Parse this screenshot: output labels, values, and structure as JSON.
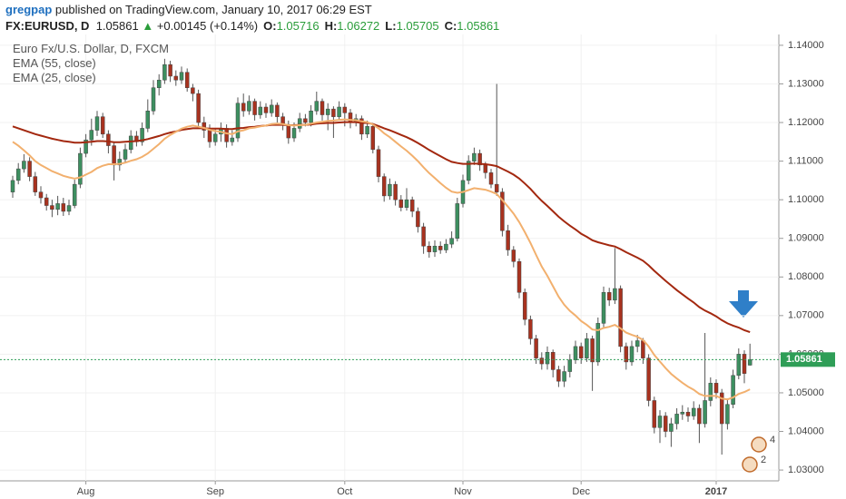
{
  "header": {
    "user": "gregpap",
    "published": "published on TradingView.com, January 10, 2017 06:29 EST",
    "symbol": "FX:EURUSD, D",
    "change": "+0.00145 (+0.14%)",
    "o_label": "O:",
    "h_label": "H:",
    "l_label": "L:",
    "c_label": "C:"
  },
  "event_counts": [
    4,
    2
  ],
  "chart_data": {
    "type": "candlestick",
    "title": "Euro Fx/U.S. Dollar, D, FXCM",
    "up_color": "#3d8f60",
    "down_color": "#a8321f",
    "last_price_color": "#2f9e57",
    "grid": true,
    "ylim": [
      1.0272,
      1.1428
    ],
    "yticks": [
      {
        "value": 1.03,
        "label": "1.03000"
      },
      {
        "value": 1.04,
        "label": "1.04000"
      },
      {
        "value": 1.05,
        "label": "1.05000"
      },
      {
        "value": 1.06,
        "label": "1.06000"
      },
      {
        "value": 1.07,
        "label": "1.07000"
      },
      {
        "value": 1.08,
        "label": "1.08000"
      },
      {
        "value": 1.09,
        "label": "1.09000"
      },
      {
        "value": 1.1,
        "label": "1.10000"
      },
      {
        "value": 1.11,
        "label": "1.11000"
      },
      {
        "value": 1.12,
        "label": "1.12000"
      },
      {
        "value": 1.13,
        "label": "1.13000"
      },
      {
        "value": 1.14,
        "label": "1.14000"
      }
    ],
    "categories": [
      null,
      null,
      null,
      null,
      null,
      null,
      null,
      null,
      null,
      null,
      null,
      null,
      null,
      "Aug",
      null,
      null,
      null,
      null,
      null,
      null,
      null,
      null,
      null,
      null,
      null,
      null,
      null,
      null,
      null,
      null,
      null,
      null,
      null,
      null,
      null,
      null,
      "Sep",
      null,
      null,
      null,
      null,
      null,
      null,
      null,
      null,
      null,
      null,
      null,
      null,
      null,
      null,
      null,
      null,
      null,
      null,
      null,
      null,
      null,
      null,
      "Oct",
      null,
      null,
      null,
      null,
      null,
      null,
      null,
      null,
      null,
      null,
      null,
      null,
      null,
      null,
      null,
      null,
      null,
      null,
      null,
      null,
      "Nov",
      null,
      null,
      null,
      null,
      null,
      null,
      null,
      null,
      null,
      null,
      null,
      null,
      null,
      null,
      null,
      null,
      null,
      null,
      null,
      null,
      "Dec",
      null,
      null,
      null,
      null,
      null,
      null,
      null,
      null,
      null,
      null,
      null,
      null,
      null,
      null,
      null,
      null,
      null,
      null,
      null,
      null,
      null,
      null,
      null,
      "2017",
      null,
      null,
      null,
      null,
      null,
      null
    ],
    "open": [
      1.102,
      1.105,
      1.108,
      1.11,
      1.106,
      1.102,
      1.1005,
      1.0985,
      1.0975,
      1.099,
      1.097,
      1.0985,
      1.104,
      1.112,
      1.1155,
      1.118,
      1.1215,
      1.117,
      1.114,
      1.109,
      1.1105,
      1.113,
      1.1165,
      1.115,
      1.1185,
      1.123,
      1.129,
      1.131,
      1.135,
      1.132,
      1.131,
      1.133,
      1.129,
      1.1275,
      1.12,
      1.118,
      1.115,
      1.117,
      1.1185,
      1.115,
      1.116,
      1.125,
      1.123,
      1.1255,
      1.122,
      1.124,
      1.1225,
      1.1245,
      1.1215,
      1.1195,
      1.116,
      1.1185,
      1.121,
      1.12,
      1.123,
      1.1255,
      1.122,
      1.1235,
      1.1215,
      1.124,
      1.1225,
      1.12,
      1.121,
      1.117,
      1.119,
      1.113,
      1.106,
      1.101,
      1.104,
      1.1,
      1.098,
      1.1,
      1.097,
      1.093,
      1.088,
      1.0865,
      1.088,
      1.087,
      1.0885,
      1.09,
      1.099,
      1.105,
      1.11,
      1.112,
      1.109,
      1.107,
      1.104,
      1.102,
      1.092,
      1.087,
      1.084,
      1.076,
      1.069,
      1.064,
      1.059,
      1.0575,
      1.0605,
      1.056,
      1.053,
      1.0555,
      1.0585,
      1.062,
      1.059,
      1.064,
      1.058,
      1.068,
      1.076,
      1.074,
      1.077,
      1.062,
      1.058,
      1.062,
      1.0635,
      1.059,
      1.048,
      1.041,
      1.044,
      1.04,
      1.042,
      1.0445,
      1.045,
      1.044,
      1.046,
      1.042,
      1.048,
      1.0525,
      1.05,
      1.042,
      1.047,
      1.0545,
      1.06,
      1.05716
    ],
    "high": [
      1.1062,
      1.1095,
      1.1118,
      1.111,
      1.1072,
      1.1035,
      1.1015,
      1.1,
      1.101,
      1.1005,
      1.1,
      1.1052,
      1.1135,
      1.117,
      1.121,
      1.123,
      1.1225,
      1.118,
      1.115,
      1.1125,
      1.1145,
      1.118,
      1.1178,
      1.12,
      1.126,
      1.131,
      1.1325,
      1.1365,
      1.136,
      1.1335,
      1.1345,
      1.134,
      1.13,
      1.1285,
      1.1215,
      1.1195,
      1.1185,
      1.12,
      1.1195,
      1.118,
      1.1265,
      1.1275,
      1.127,
      1.1262,
      1.1255,
      1.125,
      1.126,
      1.1252,
      1.1225,
      1.1205,
      1.12,
      1.1225,
      1.1222,
      1.1245,
      1.128,
      1.1262,
      1.125,
      1.1242,
      1.1255,
      1.125,
      1.1235,
      1.1222,
      1.1218,
      1.1205,
      1.1198,
      1.114,
      1.1068,
      1.1055,
      1.1048,
      1.1012,
      1.103,
      1.1008,
      1.098,
      1.094,
      1.0892,
      1.0895,
      1.0892,
      1.0898,
      1.0918,
      1.1005,
      1.1065,
      1.1115,
      1.1135,
      1.113,
      1.1098,
      1.108,
      1.13,
      1.103,
      1.0935,
      1.088,
      1.0848,
      1.077,
      1.07,
      1.065,
      1.0605,
      1.062,
      1.0612,
      1.057,
      1.057,
      1.06,
      1.0635,
      1.063,
      1.0655,
      1.0648,
      1.0695,
      1.0775,
      1.0772,
      1.0875,
      1.0778,
      1.063,
      1.0635,
      1.065,
      1.0642,
      1.06,
      1.049,
      1.0455,
      1.045,
      1.0435,
      1.046,
      1.0468,
      1.0462,
      1.0478,
      1.047,
      1.0655,
      1.054,
      1.0535,
      1.051,
      1.0485,
      1.056,
      1.0615,
      1.061,
      1.06272
    ],
    "low": [
      1.1005,
      1.104,
      1.107,
      1.1048,
      1.101,
      1.099,
      1.0972,
      1.0955,
      1.096,
      1.0958,
      1.096,
      1.0978,
      1.103,
      1.111,
      1.114,
      1.1165,
      1.116,
      1.112,
      1.105,
      1.1075,
      1.1095,
      1.112,
      1.1138,
      1.114,
      1.1175,
      1.122,
      1.127,
      1.13,
      1.1305,
      1.1295,
      1.13,
      1.128,
      1.1255,
      1.1185,
      1.116,
      1.1135,
      1.114,
      1.115,
      1.1135,
      1.114,
      1.115,
      1.1215,
      1.122,
      1.1205,
      1.121,
      1.1212,
      1.1215,
      1.12,
      1.118,
      1.1145,
      1.115,
      1.1175,
      1.119,
      1.119,
      1.122,
      1.1205,
      1.118,
      1.116,
      1.1205,
      1.119,
      1.1185,
      1.119,
      1.1155,
      1.116,
      1.112,
      1.1045,
      1.0995,
      1.1,
      1.0985,
      1.097,
      1.0972,
      1.0955,
      1.0915,
      1.086,
      1.085,
      1.0852,
      1.086,
      1.0862,
      1.0875,
      1.0892,
      1.098,
      1.104,
      1.109,
      1.1075,
      1.1055,
      1.103,
      1.101,
      1.0905,
      1.0855,
      1.0825,
      1.0745,
      1.0675,
      1.0625,
      1.0575,
      1.056,
      1.056,
      1.054,
      1.0515,
      1.0515,
      1.054,
      1.0575,
      1.0575,
      1.058,
      1.0505,
      1.057,
      1.067,
      1.0725,
      1.073,
      1.0605,
      1.056,
      1.057,
      1.0605,
      1.0575,
      1.0465,
      1.0395,
      1.037,
      1.0385,
      1.036,
      1.0405,
      1.043,
      1.0425,
      1.043,
      1.037,
      1.041,
      1.0465,
      1.0485,
      1.034,
      1.0405,
      1.046,
      1.0535,
      1.0525,
      1.05705
    ],
    "close": [
      1.105,
      1.108,
      1.11,
      1.106,
      1.102,
      1.1005,
      1.0985,
      1.0975,
      1.099,
      1.097,
      1.0985,
      1.104,
      1.112,
      1.1155,
      1.118,
      1.1215,
      1.117,
      1.114,
      1.109,
      1.1105,
      1.113,
      1.1165,
      1.115,
      1.1185,
      1.123,
      1.129,
      1.131,
      1.135,
      1.132,
      1.131,
      1.133,
      1.129,
      1.1275,
      1.12,
      1.118,
      1.115,
      1.117,
      1.1185,
      1.115,
      1.116,
      1.125,
      1.123,
      1.1255,
      1.122,
      1.124,
      1.1225,
      1.1245,
      1.1215,
      1.1195,
      1.116,
      1.1185,
      1.121,
      1.12,
      1.123,
      1.1255,
      1.122,
      1.1235,
      1.1215,
      1.124,
      1.1225,
      1.12,
      1.121,
      1.117,
      1.119,
      1.113,
      1.106,
      1.101,
      1.104,
      1.1,
      1.098,
      1.1,
      1.097,
      1.093,
      1.088,
      1.0865,
      1.088,
      1.087,
      1.0885,
      1.09,
      1.099,
      1.105,
      1.11,
      1.112,
      1.109,
      1.107,
      1.104,
      1.102,
      1.092,
      1.087,
      1.084,
      1.076,
      1.069,
      1.064,
      1.059,
      1.0575,
      1.0605,
      1.056,
      1.053,
      1.0555,
      1.0585,
      1.062,
      1.059,
      1.064,
      1.058,
      1.068,
      1.076,
      1.074,
      1.077,
      1.062,
      1.058,
      1.062,
      1.0635,
      1.059,
      1.048,
      1.041,
      1.044,
      1.04,
      1.042,
      1.0445,
      1.045,
      1.044,
      1.046,
      1.042,
      1.048,
      1.0525,
      1.05,
      1.042,
      1.047,
      1.0545,
      1.06,
      1.055,
      1.05861
    ],
    "series": [
      {
        "name": "EMA (55, close)",
        "color": "#a3280f",
        "values": [
          1.119,
          1.1185,
          1.118,
          1.1175,
          1.117,
          1.1166,
          1.1162,
          1.1158,
          1.1155,
          1.1152,
          1.115,
          1.1148,
          1.1148,
          1.1149,
          1.115,
          1.1152,
          1.1152,
          1.1151,
          1.1149,
          1.1149,
          1.115,
          1.1151,
          1.1152,
          1.1154,
          1.1157,
          1.1161,
          1.1165,
          1.117,
          1.1174,
          1.1177,
          1.1181,
          1.1183,
          1.1185,
          1.1185,
          1.1185,
          1.1184,
          1.1184,
          1.1184,
          1.1183,
          1.1183,
          1.1185,
          1.1186,
          1.1188,
          1.1189,
          1.1191,
          1.1192,
          1.1194,
          1.1194,
          1.1194,
          1.1193,
          1.1193,
          1.1194,
          1.1194,
          1.1195,
          1.1197,
          1.1198,
          1.1199,
          1.1199,
          1.12,
          1.1201,
          1.1201,
          1.1201,
          1.1199,
          1.1199,
          1.1196,
          1.1191,
          1.1185,
          1.118,
          1.1174,
          1.1168,
          1.1162,
          1.1155,
          1.1147,
          1.1138,
          1.1129,
          1.1121,
          1.1113,
          1.1105,
          1.1098,
          1.1095,
          1.1093,
          1.1093,
          1.1094,
          1.1093,
          1.1092,
          1.109,
          1.1087,
          1.108,
          1.1073,
          1.1065,
          1.1055,
          1.1042,
          1.1028,
          1.1012,
          1.0997,
          1.0984,
          1.097,
          1.0956,
          1.0944,
          1.0933,
          1.0923,
          1.0912,
          1.0904,
          1.0895,
          1.089,
          1.0886,
          1.0882,
          1.0879,
          1.0872,
          1.0864,
          1.0857,
          1.085,
          1.0842,
          1.083,
          1.0816,
          1.0803,
          1.079,
          1.0778,
          1.0766,
          1.0755,
          1.0744,
          1.0734,
          1.0722,
          1.0713,
          1.0706,
          1.0698,
          1.0688,
          1.068,
          1.0674,
          1.0669,
          1.0662,
          1.0657
        ]
      },
      {
        "name": "EMA (25, close)",
        "color": "#f2b06e",
        "values": [
          1.115,
          1.114,
          1.1128,
          1.1115,
          1.11,
          1.109,
          1.1082,
          1.1074,
          1.1068,
          1.1062,
          1.1058,
          1.1055,
          1.1058,
          1.1065,
          1.1072,
          1.1082,
          1.1088,
          1.1092,
          1.1092,
          1.1093,
          1.1096,
          1.1101,
          1.1105,
          1.1111,
          1.112,
          1.1132,
          1.1144,
          1.1158,
          1.1168,
          1.1176,
          1.1184,
          1.1189,
          1.1192,
          1.1189,
          1.1186,
          1.1181,
          1.1178,
          1.1176,
          1.1172,
          1.117,
          1.1177,
          1.118,
          1.1185,
          1.1187,
          1.119,
          1.1192,
          1.1196,
          1.1197,
          1.1196,
          1.1193,
          1.1192,
          1.1193,
          1.1194,
          1.1197,
          1.12,
          1.1202,
          1.1204,
          1.1205,
          1.1207,
          1.1208,
          1.1207,
          1.1206,
          1.1203,
          1.1201,
          1.1195,
          1.1185,
          1.1172,
          1.1162,
          1.115,
          1.1138,
          1.1127,
          1.1114,
          1.11,
          1.1084,
          1.1069,
          1.1056,
          1.1043,
          1.1031,
          1.1021,
          1.1018,
          1.102,
          1.1025,
          1.103,
          1.1028,
          1.1026,
          1.1021,
          1.1015,
          1.0999,
          1.0982,
          1.0964,
          1.0942,
          1.0916,
          1.0888,
          1.0857,
          1.0827,
          1.0803,
          1.0776,
          1.0749,
          1.0728,
          1.0712,
          1.07,
          1.0686,
          1.0676,
          1.0664,
          1.0662,
          1.0668,
          1.0671,
          1.0676,
          1.0667,
          1.0656,
          1.065,
          1.0645,
          1.0637,
          1.062,
          1.0598,
          1.0581,
          1.0564,
          1.0549,
          1.0537,
          1.0526,
          1.0516,
          1.0508,
          1.0497,
          1.0492,
          1.0492,
          1.0492,
          1.0485,
          1.0483,
          1.0488,
          1.0497,
          1.0502,
          1.0509
        ]
      }
    ]
  }
}
